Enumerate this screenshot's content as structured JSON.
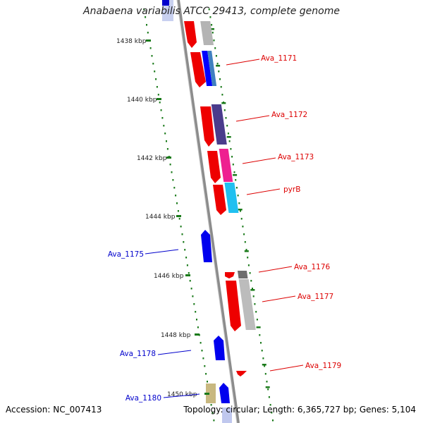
{
  "title": "Anabaena variabilis ATCC 29413, complete genome",
  "footer": {
    "accession": "Accession: NC_007413",
    "summary": "Topology: circular; Length: 6,365,727 bp; Genes: 5,104"
  },
  "colors": {
    "backbone": "#8c8c8c",
    "tick": "#1a7a1a",
    "forward_label": "#dd0000",
    "reverse_label": "#0000cc"
  },
  "chart_data": {
    "type": "linear genome map",
    "scale_labels": [
      "1438 kbp",
      "1440 kbp",
      "1442 kbp",
      "1444 kbp",
      "1446 kbp",
      "1448 kbp",
      "1450 kbp"
    ],
    "gene_labels": [
      {
        "name": "Ava_1171",
        "strand": "forward"
      },
      {
        "name": "Ava_1172",
        "strand": "forward"
      },
      {
        "name": "Ava_1173",
        "strand": "forward"
      },
      {
        "name": "pyrB",
        "strand": "forward"
      },
      {
        "name": "Ava_1175",
        "strand": "reverse"
      },
      {
        "name": "Ava_1176",
        "strand": "forward"
      },
      {
        "name": "Ava_1177",
        "strand": "forward"
      },
      {
        "name": "Ava_1178",
        "strand": "reverse"
      },
      {
        "name": "Ava_1179",
        "strand": "forward"
      },
      {
        "name": "Ava_1180",
        "strand": "reverse"
      }
    ]
  }
}
